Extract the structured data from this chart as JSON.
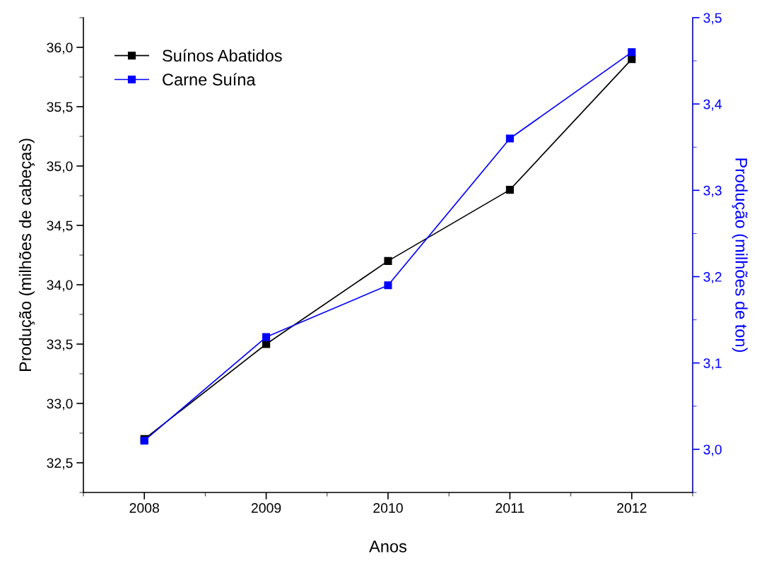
{
  "chart_data": {
    "type": "line",
    "xlabel": "Anos",
    "ylabel": "Produção (milhões de cabeças)",
    "y2label": "Produção (milhões de ton)",
    "x": [
      2008,
      2009,
      2010,
      2011,
      2012
    ],
    "series": [
      {
        "name": "Suínos Abatidos",
        "color": "#000000",
        "values": [
          32.7,
          33.5,
          34.2,
          34.8,
          35.9
        ]
      },
      {
        "name": "Carne Suína",
        "color": "#0000ff",
        "axis": "y2",
        "values": [
          3.01,
          3.13,
          3.19,
          3.36,
          3.46
        ]
      }
    ],
    "xlim": [
      2007.5,
      2012.5
    ],
    "xticks": [
      2008,
      2009,
      2010,
      2011,
      2012
    ],
    "ylim": [
      32.25,
      36.25
    ],
    "yticks": [
      {
        "value": 32.5,
        "label": "32,5"
      },
      {
        "value": 33.0,
        "label": "33,0"
      },
      {
        "value": 33.5,
        "label": "33,5"
      },
      {
        "value": 34.0,
        "label": "34,0"
      },
      {
        "value": 34.5,
        "label": "34,5"
      },
      {
        "value": 35.0,
        "label": "35,0"
      },
      {
        "value": 35.5,
        "label": "35,5"
      },
      {
        "value": 36.0,
        "label": "36,0"
      }
    ],
    "y2lim": [
      2.95,
      3.5
    ],
    "y2ticks": [
      {
        "value": 3.0,
        "label": "3,0"
      },
      {
        "value": 3.1,
        "label": "3,1"
      },
      {
        "value": 3.2,
        "label": "3,2"
      },
      {
        "value": 3.3,
        "label": "3,3"
      },
      {
        "value": 3.4,
        "label": "3,4"
      },
      {
        "value": 3.5,
        "label": "3,5"
      }
    ],
    "marker": "square",
    "line_style": "solid",
    "grid": false,
    "legend": "top left"
  }
}
